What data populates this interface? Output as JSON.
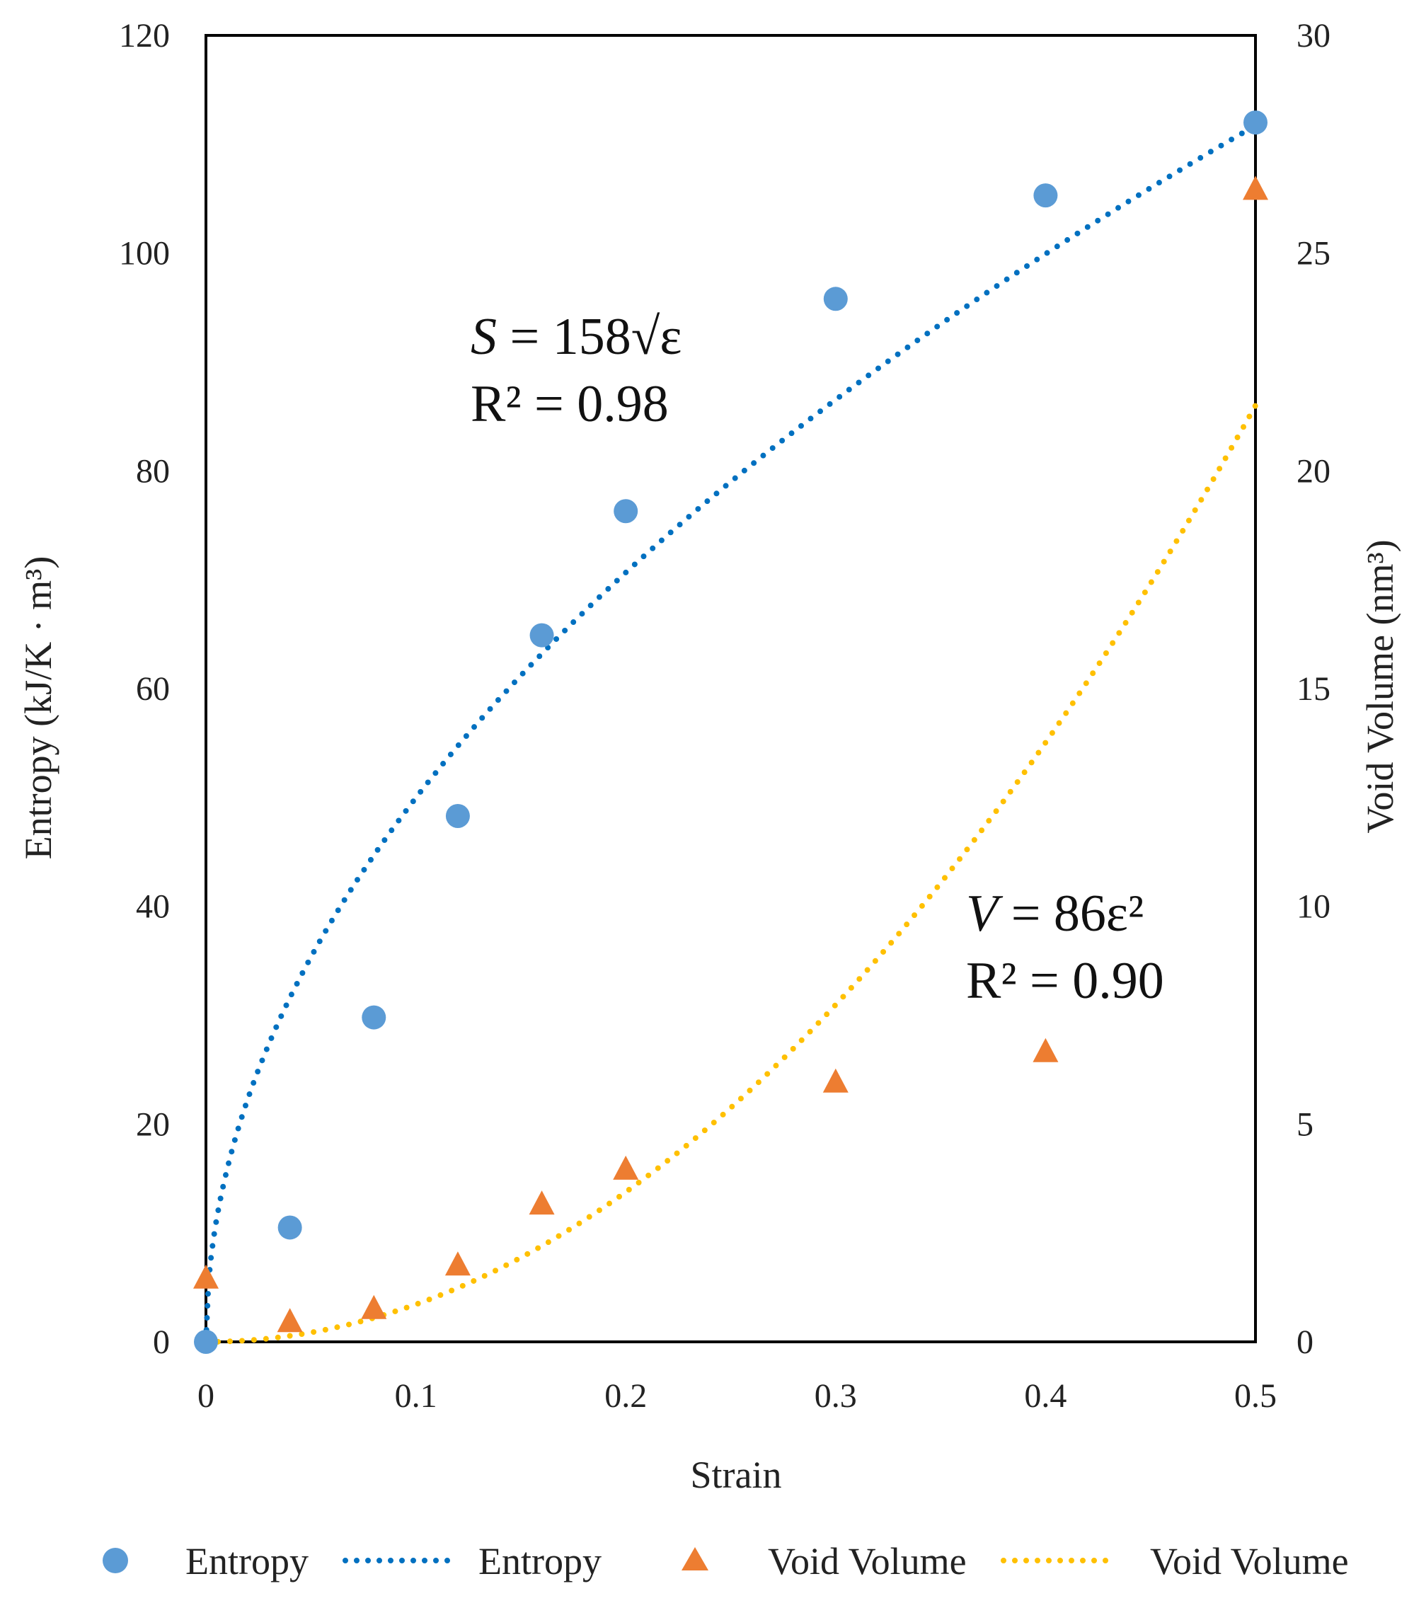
{
  "chart_data": {
    "type": "scatter",
    "xlabel": "Strain",
    "ylabel_left": "Entropy (kJ/K · m³)",
    "ylabel_right": "Void Volume (nm³)",
    "xlim": [
      0,
      0.5
    ],
    "ylim_left": [
      0,
      120
    ],
    "ylim_right": [
      0,
      30
    ],
    "x_ticks": [
      "0",
      "0.1",
      "0.2",
      "0.3",
      "0.4",
      "0.5"
    ],
    "y_left_ticks": [
      "0",
      "20",
      "40",
      "60",
      "80",
      "100",
      "120"
    ],
    "y_right_ticks": [
      "0",
      "5",
      "10",
      "15",
      "20",
      "25",
      "30"
    ],
    "grid": false,
    "series": [
      {
        "name": "Entropy",
        "axis": "left",
        "marker": "circle",
        "color": "#5b9bd5",
        "x": [
          0,
          0.04,
          0.08,
          0.12,
          0.16,
          0.2,
          0.3,
          0.4,
          0.5
        ],
        "y": [
          0,
          10.5,
          29.8,
          48.3,
          64.9,
          76.3,
          95.8,
          105.3,
          112
        ]
      },
      {
        "name": "Void Volume",
        "axis": "right",
        "marker": "triangle",
        "color": "#ed7d31",
        "x": [
          0,
          0.04,
          0.08,
          0.12,
          0.16,
          0.2,
          0.3,
          0.4,
          0.5
        ],
        "y": [
          1.5,
          0.5,
          0.8,
          1.8,
          3.2,
          4.0,
          6.0,
          6.7,
          26.5
        ]
      }
    ],
    "trendlines": [
      {
        "name": "Entropy",
        "axis": "left",
        "color": "#0070c0",
        "style": "dotted",
        "equation": "S = 158√ε",
        "coef": 158,
        "power": 0.5,
        "x_range": [
          0,
          0.5
        ],
        "eq_prefix": "S",
        "eq_body": " = 158√ε",
        "r2_label": "R² = 0.98"
      },
      {
        "name": "Void Volume",
        "axis": "right",
        "color": "#ffc000",
        "style": "dotted",
        "equation": "V = 86ε²",
        "coef": 86,
        "power": 2,
        "x_range": [
          0,
          0.5
        ],
        "eq_prefix": "V",
        "eq_body": " = 86ε²",
        "r2_label": "R² = 0.90"
      }
    ],
    "legend": {
      "placement": "bottom",
      "entries": [
        {
          "label": "Entropy",
          "kind": "marker-circle",
          "color": "#5b9bd5"
        },
        {
          "label": "Entropy",
          "kind": "dotted-line",
          "color": "#0070c0"
        },
        {
          "label": "Void Volume",
          "kind": "marker-triangle",
          "color": "#ed7d31"
        },
        {
          "label": "Void Volume",
          "kind": "dotted-line",
          "color": "#ffc000"
        }
      ]
    }
  }
}
